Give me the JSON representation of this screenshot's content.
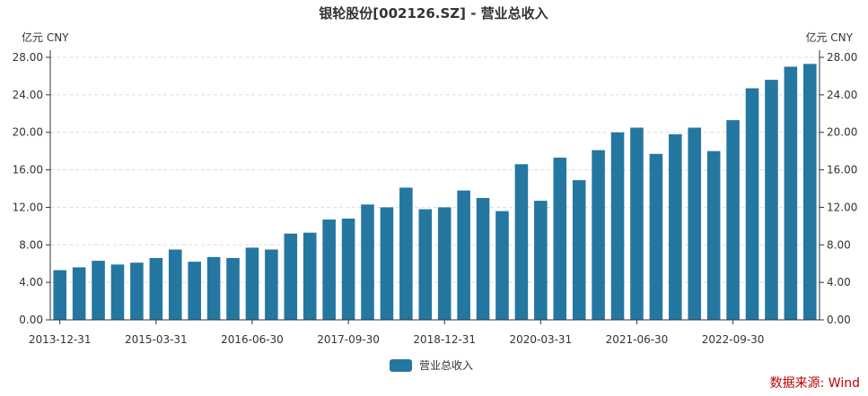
{
  "chart_data": {
    "type": "bar",
    "title": "银轮股份[002126.SZ] - 营业总收入",
    "ylabel_left": "亿元  CNY",
    "ylabel_right": "亿元  CNY",
    "ylim": [
      0,
      28
    ],
    "yticks": [
      "0.00",
      "4.00",
      "8.00",
      "12.00",
      "16.00",
      "20.00",
      "24.00",
      "28.00"
    ],
    "xtick_labels": [
      "2013-12-31",
      "2015-03-31",
      "2016-06-30",
      "2017-09-30",
      "2018-12-31",
      "2020-03-31",
      "2021-06-30",
      "2022-09-30"
    ],
    "grid": true,
    "legend_position": "bottom-center",
    "categories": [
      "2013-12-31",
      "2014-03-31",
      "2014-06-30",
      "2014-09-30",
      "2014-12-31",
      "2015-03-31",
      "2015-06-30",
      "2015-09-30",
      "2015-12-31",
      "2016-03-31",
      "2016-06-30",
      "2016-09-30",
      "2016-12-31",
      "2017-03-31",
      "2017-06-30",
      "2017-09-30",
      "2017-12-31",
      "2018-03-31",
      "2018-06-30",
      "2018-09-30",
      "2018-12-31",
      "2019-03-31",
      "2019-06-30",
      "2019-09-30",
      "2019-12-31",
      "2020-03-31",
      "2020-06-30",
      "2020-09-30",
      "2020-12-31",
      "2021-03-31",
      "2021-06-30",
      "2021-09-30",
      "2021-12-31",
      "2022-03-31",
      "2022-06-30",
      "2022-09-30",
      "2022-12-31",
      "2023-03-31",
      "2023-06-30",
      "2023-09-30"
    ],
    "series": [
      {
        "name": "营业总收入",
        "color": "#2477a0",
        "values": [
          5.3,
          5.6,
          6.3,
          5.9,
          6.1,
          6.6,
          7.5,
          6.2,
          6.7,
          6.6,
          7.7,
          7.5,
          9.2,
          9.3,
          10.7,
          10.8,
          12.3,
          12.0,
          14.1,
          11.8,
          12.0,
          13.8,
          13.0,
          11.6,
          16.6,
          12.7,
          17.3,
          14.9,
          18.1,
          20.0,
          20.5,
          17.7,
          19.8,
          20.5,
          18.0,
          21.3,
          24.7,
          25.6,
          27.0,
          27.3
        ]
      }
    ]
  },
  "source_text": "数据来源: Wind"
}
